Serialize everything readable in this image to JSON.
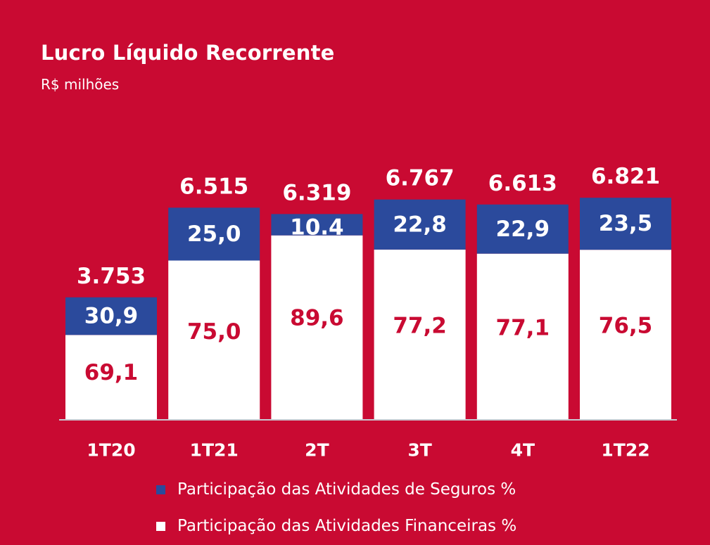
{
  "chart_data": {
    "type": "bar",
    "stacked": true,
    "title": "Lucro Líquido Recorrente",
    "subtitle": "R$ milhões",
    "categories": [
      "1T20",
      "1T21",
      "2T",
      "3T",
      "4T",
      "1T22"
    ],
    "totals": [
      3753,
      6515,
      6319,
      6767,
      6613,
      6821
    ],
    "total_labels": [
      "3.753",
      "6.515",
      "6.319",
      "6.767",
      "6.613",
      "6.821"
    ],
    "ylim": [
      0,
      7500
    ],
    "series": [
      {
        "name": "Participação das Atividades Financeiras %",
        "color": "#ffffff",
        "label_color": "#c90a32",
        "values": [
          69.1,
          75.0,
          89.6,
          77.2,
          77.1,
          76.5
        ],
        "labels": [
          "69,1",
          "75,0",
          "89,6",
          "77,2",
          "77,1",
          "76,5"
        ]
      },
      {
        "name": "Participação das Atividades de Seguros %",
        "color": "#2b4a9c",
        "label_color": "#ffffff",
        "values": [
          30.9,
          25.0,
          10.4,
          22.8,
          22.9,
          23.5
        ],
        "labels": [
          "30,9",
          "25,0",
          "10.4",
          "22,8",
          "22,9",
          "23,5"
        ]
      }
    ],
    "legend": {
      "position": "bottom",
      "entries": [
        {
          "label": "Participação das Atividades de Seguros %",
          "color": "#2b4a9c"
        },
        {
          "label": "Participação das Atividades Financeiras %",
          "color": "#ffffff"
        }
      ]
    },
    "grid": false,
    "xlabel": "",
    "ylabel": ""
  },
  "colors": {
    "background": "#c90a32",
    "seguros": "#2b4a9c",
    "financeiras": "#ffffff",
    "axis": "#c8c8d0"
  }
}
